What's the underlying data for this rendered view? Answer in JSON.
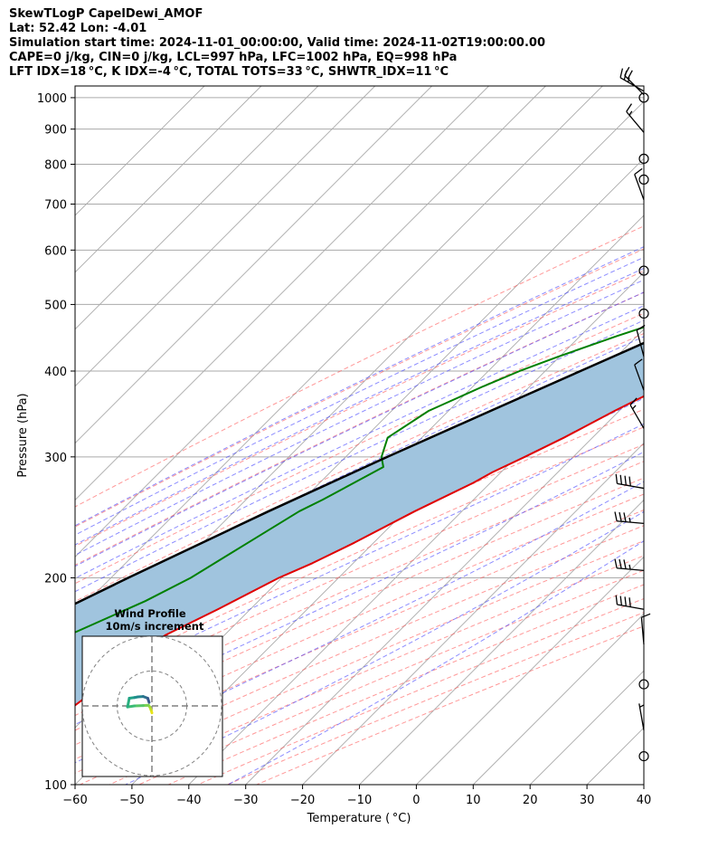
{
  "header": {
    "line1": "SkewTLogP CapelDewi_AMOF",
    "line2": "Lat: 52.42   Lon: -4.01",
    "line3": "Simulation start time: 2024-11-01_00:00:00, Valid time: 2024-11-02T19:00:00.00",
    "line4": "CAPE=0 j/kg, CIN=0 j/kg, LCL=997 hPa, LFC=1002 hPa, EQ=998 hPa",
    "line5": "LFT IDX=18 °C, K IDX=-4 °C, TOTAL TOTS=33 °C, SHWTR_IDX=11 °C"
  },
  "chart_data": {
    "type": "line",
    "skew_deg": 45,
    "xlabel": "Temperature ( °C)",
    "ylabel": "Pressure (hPa)",
    "xlim": [
      -60,
      40
    ],
    "ylim": [
      1040,
      100
    ],
    "y_scale": "log",
    "grid": true,
    "x_ticks": [
      "−60",
      "−50",
      "−40",
      "−30",
      "−20",
      "−10",
      "0",
      "10",
      "20",
      "30",
      "40"
    ],
    "x_tick_values": [
      -60,
      -50,
      -40,
      -30,
      -20,
      -10,
      0,
      10,
      20,
      30,
      40
    ],
    "y_ticks": [
      "1000",
      "900",
      "800",
      "700",
      "600",
      "500",
      "400",
      "300",
      "200",
      "100"
    ],
    "y_tick_values": [
      1000,
      900,
      800,
      700,
      600,
      500,
      400,
      300,
      200,
      100
    ],
    "colors": {
      "temperature": "#e00000",
      "dewpoint": "#008000",
      "parcel": "#000000",
      "shade": "#a0c4de",
      "dry_adiabat": "#ff5555",
      "moist_adiabat": "#4040ff",
      "mixing_ratio": "#9933cc",
      "isotherm": "#aaaaaa"
    },
    "series": [
      {
        "id": "temperature",
        "p": [
          1000,
          975,
          950,
          925,
          900,
          875,
          850,
          800,
          750,
          700,
          650,
          600,
          550,
          500,
          450,
          400,
          350,
          320,
          300,
          285,
          275,
          250,
          225,
          210,
          200,
          180,
          165,
          160,
          150,
          140,
          130,
          125,
          120,
          110,
          100
        ],
        "t": [
          9.5,
          9.8,
          11.5,
          13.8,
          15.1,
          15.0,
          13.9,
          11.4,
          8.4,
          5.5,
          1.8,
          -2.4,
          -6.7,
          -11.9,
          -17.7,
          -23.8,
          -30.8,
          -35.0,
          -38.5,
          -41.5,
          -43.0,
          -48.3,
          -53.4,
          -57.2,
          -60.5,
          -65.7,
          -70.4,
          -71.2,
          -70.5,
          -72.7,
          -74.0,
          -73.7,
          -73.3,
          -75.1,
          -77.6
        ]
      },
      {
        "id": "dewpoint",
        "p": [
          1000,
          975,
          950,
          925,
          900,
          875,
          850,
          800,
          750,
          700,
          650,
          600,
          550,
          500,
          470,
          450,
          420,
          400,
          380,
          350,
          320,
          300,
          290,
          260,
          250,
          225,
          200,
          185,
          165,
          155,
          140,
          130,
          120,
          110,
          100
        ],
        "t": [
          7.5,
          6.9,
          7.1,
          6.2,
          4.3,
          1.9,
          -0.3,
          -5.6,
          -11.8,
          -18.4,
          -25.2,
          -34.0,
          -35.8,
          -36.1,
          -38.8,
          -43.5,
          -50.2,
          -54.5,
          -58.2,
          -63.5,
          -66.0,
          -63.7,
          -61.6,
          -66.5,
          -68.6,
          -72.1,
          -76.0,
          -79.9,
          -87.4,
          -90.0,
          -86.4,
          -84.9,
          -85.2,
          -87.3,
          -89.0
        ]
      },
      {
        "id": "parcel",
        "p": [
          1005,
          1000,
          975,
          950,
          925,
          900,
          875,
          850,
          800,
          750,
          700,
          650,
          600,
          550,
          500,
          450,
          400,
          350,
          300,
          250,
          200,
          150,
          100
        ],
        "t": [
          9.6,
          9.2,
          8.2,
          7.1,
          5.9,
          4.7,
          3.4,
          1.9,
          -1.2,
          -4.6,
          -8.4,
          -12.7,
          -17.6,
          -23.0,
          -29.1,
          -36.0,
          -43.8,
          -52.6,
          -62.7,
          -74.0,
          -87.0,
          -102.8,
          -124.5
        ]
      }
    ],
    "hodograph": {
      "title": "Wind Profile",
      "subtitle": "10m/s increment",
      "u": [
        0.0,
        -0.3,
        -0.6,
        -1.0,
        -2.5,
        -5.0,
        -7.0,
        -6.5,
        -5.0,
        -4.0,
        -2.5,
        -1.2,
        -0.8
      ],
      "v": [
        -2.0,
        -1.0,
        -0.3,
        0.2,
        0.1,
        0.0,
        -0.3,
        2.2,
        2.4,
        2.6,
        2.7,
        2.2,
        1.0
      ]
    },
    "wind_barbs": [
      {
        "p": 1022,
        "kind": "barb",
        "speed_kt": 25,
        "dir": 300
      },
      {
        "p": 1000,
        "kind": "calm"
      },
      {
        "p": 1010,
        "kind": "barb",
        "speed_kt": 20,
        "dir": 315
      },
      {
        "p": 890,
        "kind": "barb",
        "speed_kt": 15,
        "dir": 320
      },
      {
        "p": 815,
        "kind": "calm"
      },
      {
        "p": 760,
        "kind": "calm"
      },
      {
        "p": 710,
        "kind": "barb",
        "speed_kt": 10,
        "dir": 340
      },
      {
        "p": 560,
        "kind": "calm"
      },
      {
        "p": 485,
        "kind": "calm"
      },
      {
        "p": 420,
        "kind": "barb",
        "speed_kt": 10,
        "dir": 345
      },
      {
        "p": 375,
        "kind": "barb",
        "speed_kt": 10,
        "dir": 340
      },
      {
        "p": 330,
        "kind": "barb",
        "speed_kt": 15,
        "dir": 330
      },
      {
        "p": 270,
        "kind": "barb",
        "speed_kt": 40,
        "dir": 280
      },
      {
        "p": 240,
        "kind": "barb",
        "speed_kt": 35,
        "dir": 275
      },
      {
        "p": 205,
        "kind": "barb",
        "speed_kt": 35,
        "dir": 275
      },
      {
        "p": 180,
        "kind": "barb",
        "speed_kt": 40,
        "dir": 280
      },
      {
        "p": 160,
        "kind": "barb",
        "speed_kt": 10,
        "dir": 355
      },
      {
        "p": 140,
        "kind": "calm"
      },
      {
        "p": 120,
        "kind": "barb",
        "speed_kt": 5,
        "dir": 350
      },
      {
        "p": 110,
        "kind": "calm"
      }
    ]
  }
}
